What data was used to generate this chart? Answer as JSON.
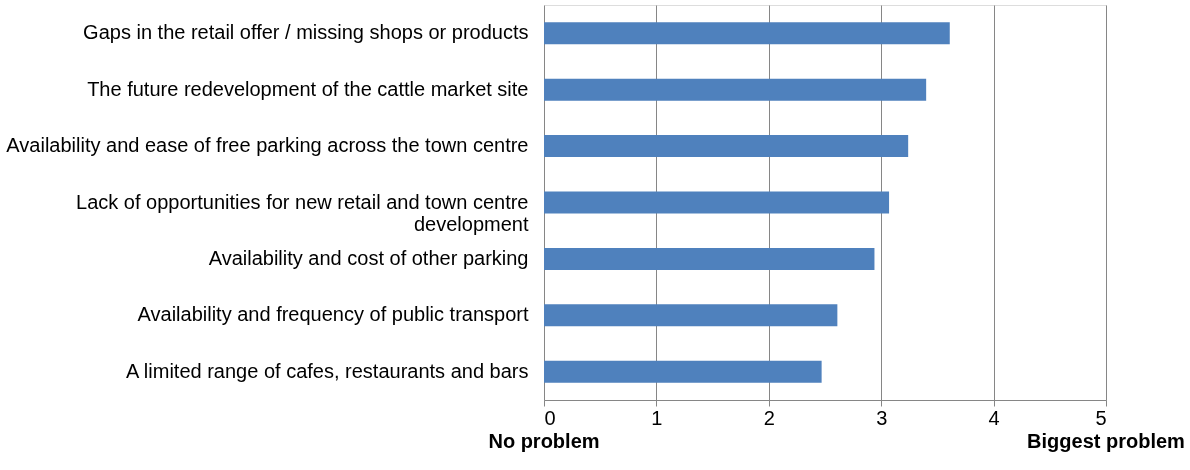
{
  "chart_data": {
    "type": "bar",
    "orientation": "horizontal",
    "categories": [
      "Gaps in the retail offer / missing shops or products",
      "The future redevelopment of the cattle market site",
      "Availability and ease of free parking across the town centre",
      "Lack of opportunities for new retail and town centre development",
      "Availability and cost of other parking",
      "Availability and frequency of public transport",
      "A limited range of cafes, restaurants and bars"
    ],
    "values": [
      3.61,
      3.4,
      3.24,
      3.07,
      2.94,
      2.61,
      2.47
    ],
    "color": "#4f81bd",
    "xlim": [
      0,
      5
    ],
    "xticks": [
      0,
      1,
      2,
      3,
      4,
      5
    ],
    "grid": "x",
    "annotations": [
      "No problem",
      "Biggest problem"
    ]
  }
}
